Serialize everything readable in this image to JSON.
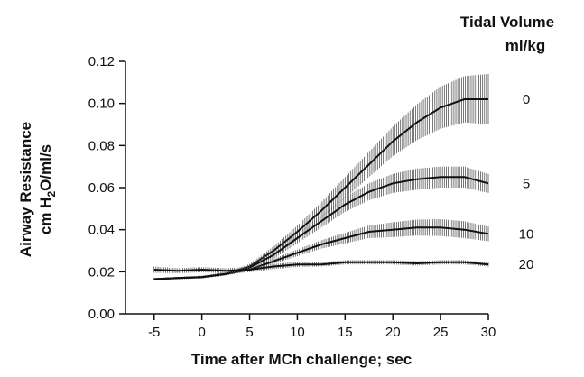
{
  "chart_data": {
    "type": "line",
    "xlabel": "Time after MCh challenge;  sec",
    "ylabel_line1": "Airway Resistance",
    "ylabel_line2_pre": "cm H",
    "ylabel_line2_sub": "2",
    "ylabel_line2_post": "O/ml/s",
    "legend_title_line1": "Tidal Volume",
    "legend_title_line2": "ml/kg",
    "xlim": [
      -8,
      30
    ],
    "ylim": [
      0,
      0.12
    ],
    "xticks": [
      -5,
      0,
      5,
      10,
      15,
      20,
      25,
      30
    ],
    "xtick_labels": [
      "-5",
      "0",
      "5",
      "10",
      "15",
      "20",
      "25",
      "30"
    ],
    "yticks": [
      0,
      0.02,
      0.04,
      0.06,
      0.08,
      0.1,
      0.12
    ],
    "ytick_labels": [
      "0.00",
      "0.02",
      "0.04",
      "0.06",
      "0.08",
      "0.10",
      "0.12"
    ],
    "grid": false,
    "legend_placement": "right",
    "series": [
      {
        "name": "0",
        "x": [
          -5,
          -2.5,
          0,
          2.5,
          5,
          7.5,
          10,
          12.5,
          15,
          17.5,
          20,
          22.5,
          25,
          27.5,
          30
        ],
        "values": [
          0.0165,
          0.017,
          0.0175,
          0.019,
          0.0225,
          0.03,
          0.039,
          0.049,
          0.06,
          0.071,
          0.082,
          0.091,
          0.098,
          0.102,
          0.102
        ],
        "error": [
          0.0005,
          0.0005,
          0.0006,
          0.0008,
          0.0012,
          0.002,
          0.003,
          0.004,
          0.005,
          0.006,
          0.007,
          0.0085,
          0.01,
          0.011,
          0.012
        ]
      },
      {
        "name": "5",
        "x": [
          -5,
          -2.5,
          0,
          2.5,
          5,
          7.5,
          10,
          12.5,
          15,
          17.5,
          20,
          22.5,
          25,
          27.5,
          30
        ],
        "values": [
          0.0165,
          0.017,
          0.0175,
          0.019,
          0.022,
          0.028,
          0.036,
          0.044,
          0.052,
          0.058,
          0.062,
          0.064,
          0.065,
          0.065,
          0.062
        ],
        "error": [
          0.0005,
          0.0005,
          0.0006,
          0.0008,
          0.001,
          0.0018,
          0.0025,
          0.003,
          0.0035,
          0.004,
          0.0045,
          0.005,
          0.005,
          0.005,
          0.0045
        ]
      },
      {
        "name": "10",
        "x": [
          -5,
          -2.5,
          0,
          2.5,
          5,
          7.5,
          10,
          12.5,
          15,
          17.5,
          20,
          22.5,
          25,
          27.5,
          30
        ],
        "values": [
          0.0165,
          0.017,
          0.0175,
          0.019,
          0.021,
          0.025,
          0.029,
          0.033,
          0.036,
          0.039,
          0.04,
          0.041,
          0.041,
          0.04,
          0.038
        ],
        "error": [
          0.0005,
          0.0005,
          0.0006,
          0.0007,
          0.0009,
          0.0012,
          0.0016,
          0.002,
          0.0025,
          0.003,
          0.0035,
          0.0038,
          0.004,
          0.004,
          0.0035
        ]
      },
      {
        "name": "20",
        "x": [
          -5,
          -2.5,
          0,
          2.5,
          5,
          7.5,
          10,
          12.5,
          15,
          17.5,
          20,
          22.5,
          25,
          27.5,
          30
        ],
        "values": [
          0.021,
          0.0205,
          0.021,
          0.0205,
          0.021,
          0.0225,
          0.0235,
          0.0235,
          0.0245,
          0.0245,
          0.0245,
          0.024,
          0.0245,
          0.0245,
          0.0235
        ],
        "error": [
          0.0015,
          0.0012,
          0.0012,
          0.0012,
          0.0012,
          0.0012,
          0.0012,
          0.001,
          0.001,
          0.001,
          0.001,
          0.001,
          0.001,
          0.001,
          0.001
        ]
      }
    ]
  }
}
